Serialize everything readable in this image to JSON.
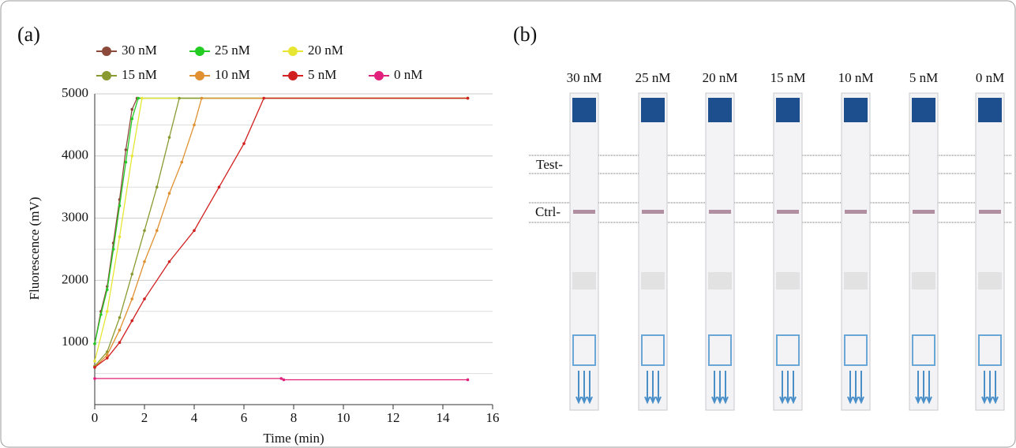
{
  "chart_data": {
    "type": "line",
    "xlabel": "Time (min)",
    "ylabel": "Fluorescence (mV)",
    "xlim": [
      0,
      16
    ],
    "xticks": [
      0,
      2,
      4,
      6,
      8,
      10,
      12,
      14,
      16
    ],
    "ylim": [
      0,
      5000
    ],
    "yticks": [
      1000,
      2000,
      3000,
      4000,
      5000
    ],
    "minor_yticks": [
      500,
      1500,
      2500,
      3500,
      4500
    ],
    "grid": true,
    "series": [
      {
        "name": "30 nM",
        "color": "#8b4a3a",
        "x": [
          0,
          0.25,
          0.5,
          0.75,
          1,
          1.25,
          1.5,
          1.7,
          15
        ],
        "values": [
          980,
          1500,
          1900,
          2600,
          3300,
          4100,
          4750,
          4930,
          4930
        ]
      },
      {
        "name": "25 nM",
        "color": "#22cc22",
        "x": [
          0,
          0.25,
          0.5,
          0.75,
          1,
          1.25,
          1.5,
          1.75,
          15
        ],
        "values": [
          980,
          1450,
          1850,
          2500,
          3200,
          3900,
          4600,
          4930,
          4930
        ]
      },
      {
        "name": "20 nM",
        "color": "#e6e633",
        "x": [
          0,
          0.5,
          1,
          1.5,
          1.9,
          15
        ],
        "values": [
          700,
          1500,
          2700,
          4000,
          4930,
          4930
        ]
      },
      {
        "name": "15 nM",
        "color": "#8a9a30",
        "x": [
          0,
          0.5,
          1,
          1.5,
          2,
          2.5,
          3,
          3.4,
          15
        ],
        "values": [
          620,
          850,
          1400,
          2100,
          2800,
          3500,
          4300,
          4930,
          4930
        ]
      },
      {
        "name": "10 nM",
        "color": "#e09030",
        "x": [
          0,
          0.5,
          1,
          1.5,
          2,
          2.5,
          3,
          3.5,
          4,
          4.3,
          15
        ],
        "values": [
          600,
          800,
          1200,
          1700,
          2300,
          2800,
          3400,
          3900,
          4500,
          4930,
          4930
        ]
      },
      {
        "name": "5 nM",
        "color": "#d02020",
        "x": [
          0,
          0.5,
          1,
          1.5,
          2,
          3,
          4,
          5,
          6,
          6.8,
          15
        ],
        "values": [
          600,
          750,
          1000,
          1350,
          1700,
          2300,
          2800,
          3500,
          4200,
          4930,
          4930
        ]
      },
      {
        "name": "0 nM",
        "color": "#e0207a",
        "x": [
          0,
          7.5,
          7.6,
          15
        ],
        "values": [
          420,
          420,
          400,
          400
        ]
      }
    ]
  },
  "panel_labels": [
    "(a)",
    "(b)"
  ],
  "strips": {
    "labels": [
      "30 nM",
      "25 nM",
      "20 nM",
      "15 nM",
      "10 nM",
      "5 nM",
      "0 nM"
    ],
    "test_label": "Test-",
    "ctrl_label": "Ctrl-"
  }
}
